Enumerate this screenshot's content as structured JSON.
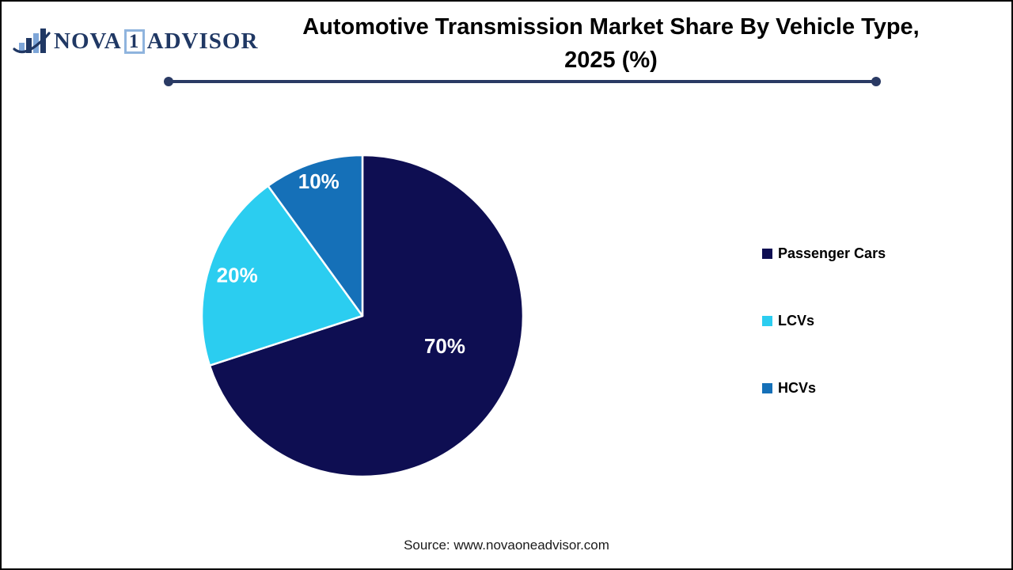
{
  "logo": {
    "brand_part1": "NOVA",
    "brand_number": "1",
    "brand_part2": "ADVISOR",
    "navy": "#203864",
    "light_blue": "#7EA6D8"
  },
  "header": {
    "title_line1": "Automotive Transmission Market Share By Vehicle Type,",
    "title_line2": "2025 (%)",
    "divider_color": "#2A3A64"
  },
  "chart_data": {
    "type": "pie",
    "title": "Automotive Transmission Market Share By Vehicle Type, 2025 (%)",
    "categories": [
      "Passenger Cars",
      "LCVs",
      "HCVs"
    ],
    "values": [
      70,
      20,
      10
    ],
    "labels": [
      "70%",
      "20%",
      "10%"
    ],
    "unit": "%",
    "colors": [
      "#0E0E52",
      "#2BCDF0",
      "#1570B8"
    ],
    "start_angle_deg": 0,
    "direction": "clockwise",
    "slice_border_color": "#FFFFFF",
    "label_color": "#FFFFFF",
    "legend_position": "right"
  },
  "legend": {
    "items": [
      {
        "label": "Passenger Cars"
      },
      {
        "label": "LCVs"
      },
      {
        "label": "HCVs"
      }
    ]
  },
  "footer": {
    "source": "Source: www.novaoneadvisor.com"
  }
}
